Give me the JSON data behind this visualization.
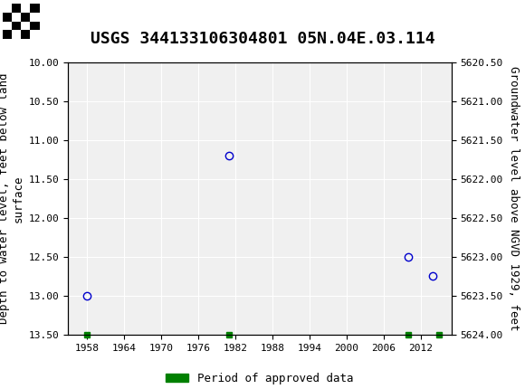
{
  "title": "USGS 344133106304801 05N.04E.03.114",
  "xlabel": "",
  "ylabel_left": "Depth to water level, feet below land\nsurface",
  "ylabel_right": "Groundwater level above NGVD 1929, feet",
  "xlim": [
    1955,
    2017
  ],
  "ylim_left": [
    10.0,
    13.5
  ],
  "ylim_right": [
    5620.5,
    5624.0
  ],
  "xticks": [
    1958,
    1964,
    1970,
    1976,
    1982,
    1988,
    1994,
    2000,
    2006,
    2012
  ],
  "yticks_left": [
    10.0,
    10.5,
    11.0,
    11.5,
    12.0,
    12.5,
    13.0,
    13.5
  ],
  "yticks_right": [
    5620.5,
    5621.0,
    5621.5,
    5622.0,
    5622.5,
    5623.0,
    5623.5,
    5624.0
  ],
  "data_x": [
    1958,
    1981,
    2010,
    2014
  ],
  "data_y": [
    13.0,
    11.2,
    12.5,
    12.75
  ],
  "green_x": [
    1958,
    1981,
    2010,
    2015
  ],
  "green_y": [
    13.5,
    13.5,
    13.5,
    13.5
  ],
  "point_color": "#0000cc",
  "point_marker": "o",
  "point_size": 6,
  "green_color": "#008000",
  "green_marker": "s",
  "green_size": 5,
  "header_color": "#006633",
  "header_text_color": "#ffffff",
  "background_plot": "#f0f0f0",
  "grid_color": "#ffffff",
  "font_family": "monospace",
  "title_fontsize": 13,
  "label_fontsize": 9,
  "tick_fontsize": 8,
  "legend_label": "Period of approved data"
}
